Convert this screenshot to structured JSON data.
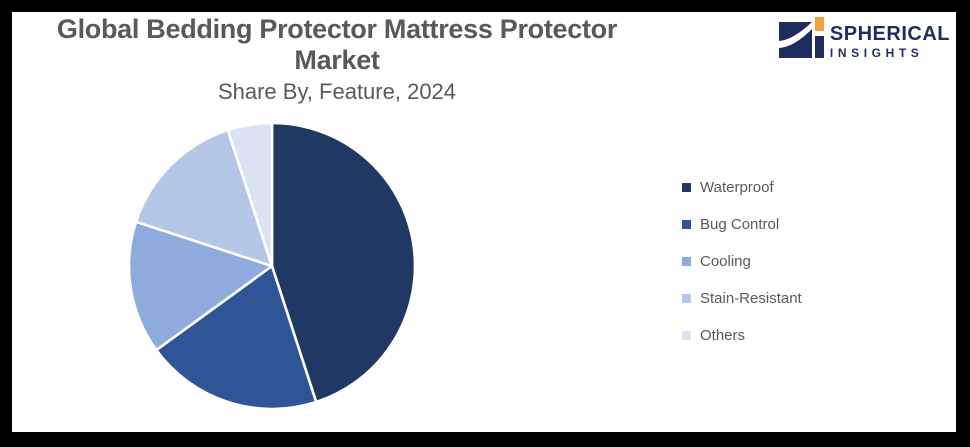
{
  "header": {
    "title": "Global Bedding Protector Mattress Protector Market",
    "subtitle": "Share By, Feature, 2024"
  },
  "logo": {
    "name": "SPHERICAL",
    "tagline": "INSIGHTS",
    "navy_color": "#1F2C5F",
    "orange_color": "#F2A23C"
  },
  "chart_data": {
    "type": "pie",
    "title": "Global Bedding Protector Mattress Protector Market",
    "subtitle": "Share By, Feature, 2024",
    "categories": [
      "Waterproof",
      "Bug Control",
      "Cooling",
      "Stain-Resistant",
      "Others"
    ],
    "values": [
      45,
      20,
      15,
      15,
      5
    ],
    "unit": "percent",
    "colors": [
      "#1F3864",
      "#2F5597",
      "#8FAADC",
      "#B4C7E7",
      "#DAE3F3"
    ],
    "legend_position": "right",
    "start_angle_deg": 0,
    "direction": "clockwise",
    "slice_border_color": "#FFFFFF",
    "text_color": "#595959"
  }
}
